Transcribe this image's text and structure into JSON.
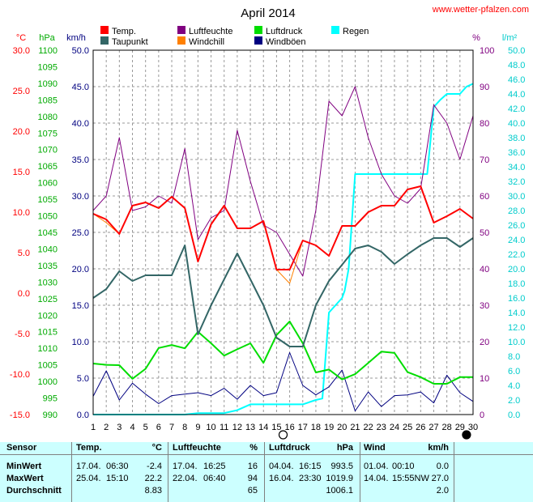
{
  "header": {
    "title": "April 2014",
    "source": "www.wetter-pfalzen.com"
  },
  "legend": [
    {
      "label": "Temp.",
      "color": "#ff0000"
    },
    {
      "label": "Luftfeuchte",
      "color": "#800080"
    },
    {
      "label": "Luftdruck",
      "color": "#00dd00"
    },
    {
      "label": "Regen",
      "color": "#00ffff"
    },
    {
      "label": "Taupunkt",
      "color": "#336666"
    },
    {
      "label": "Windchill",
      "color": "#ff8000"
    },
    {
      "label": "Windböen",
      "color": "#000080"
    }
  ],
  "axis_headers": {
    "temp": "°C",
    "pressure": "hPa",
    "wind": "km/h",
    "humidity": "%",
    "rain": "l/m²"
  },
  "colors": {
    "temp": "#ff0000",
    "dewpoint": "#336666",
    "humidity": "#800080",
    "windchill": "#ff8000",
    "pressure": "#00dd00",
    "rain": "#00ffff",
    "gusts": "#000080",
    "grid": "#999999",
    "table_bg": "#ccffff"
  },
  "moon_phases": [
    {
      "day": 15.5,
      "icon": "full-moon-icon"
    },
    {
      "day": 29.5,
      "icon": "new-moon-icon"
    }
  ],
  "chart_data": {
    "type": "line",
    "title": "April 2014",
    "x": [
      1,
      2,
      3,
      4,
      5,
      6,
      7,
      8,
      9,
      10,
      11,
      12,
      13,
      14,
      15,
      16,
      17,
      18,
      19,
      20,
      21,
      22,
      23,
      24,
      25,
      26,
      27,
      28,
      29,
      30
    ],
    "xlim": [
      1,
      30
    ],
    "axes": {
      "wind": {
        "unit": "km/h",
        "range": [
          0,
          50
        ],
        "ticks": [
          "0.0",
          "5.0",
          "10.0",
          "15.0",
          "20.0",
          "25.0",
          "30.0",
          "35.0",
          "40.0",
          "45.0",
          "50.0"
        ]
      },
      "temp": {
        "unit": "°C",
        "range": [
          -15,
          30
        ],
        "ticks": [
          "-15.0",
          "-10.0",
          "-5.0",
          "0.0",
          "5.0",
          "10.0",
          "15.0",
          "20.0",
          "25.0",
          "30.0"
        ]
      },
      "pressure": {
        "unit": "hPa",
        "range": [
          990,
          1100
        ],
        "ticks": [
          "990",
          "995",
          "1000",
          "1005",
          "1010",
          "1015",
          "1020",
          "1025",
          "1030",
          "1035",
          "1040",
          "1045",
          "1050",
          "1055",
          "1060",
          "1065",
          "1070",
          "1075",
          "1080",
          "1085",
          "1090",
          "1095",
          "1100"
        ]
      },
      "humidity": {
        "unit": "%",
        "range": [
          0,
          100
        ],
        "ticks": [
          "0",
          "10",
          "20",
          "30",
          "40",
          "50",
          "60",
          "70",
          "80",
          "90",
          "100"
        ]
      },
      "rain": {
        "unit": "l/m²",
        "range": [
          0,
          50
        ],
        "ticks": [
          "0.0",
          "2.0",
          "4.0",
          "6.0",
          "8.0",
          "10.0",
          "12.0",
          "14.0",
          "16.0",
          "18.0",
          "20.0",
          "22.0",
          "24.0",
          "26.0",
          "28.0",
          "30.0",
          "32.0",
          "34.0",
          "36.0",
          "38.0",
          "40.0",
          "42.0",
          "44.0",
          "46.0",
          "48.0",
          "50.0"
        ]
      }
    },
    "series": [
      {
        "name": "Temp.",
        "axis": "temp",
        "x": [
          1,
          2,
          3,
          4,
          5,
          6,
          7,
          8,
          9,
          10,
          11,
          12,
          13,
          14,
          15,
          16,
          17,
          18,
          19,
          20,
          21,
          22,
          23,
          24,
          25,
          26,
          27,
          28,
          29,
          30
        ],
        "values": [
          9.8,
          9.1,
          7.3,
          10.8,
          11.2,
          10.5,
          11.9,
          10.5,
          3.9,
          8.5,
          10.8,
          8.0,
          8.0,
          8.9,
          2.9,
          2.9,
          6.5,
          5.9,
          4.6,
          8.3,
          8.3,
          10.0,
          10.8,
          10.8,
          12.8,
          13.2,
          8.7,
          9.5,
          10.4,
          9.2
        ]
      },
      {
        "name": "Windchill",
        "axis": "temp",
        "x": [
          1,
          2,
          3,
          4,
          5,
          6,
          7,
          8,
          9,
          10,
          11,
          12,
          13,
          14,
          15,
          16,
          17,
          18,
          19,
          20,
          21,
          22,
          23,
          24,
          25,
          26,
          27,
          28,
          29,
          30
        ],
        "values": [
          9.8,
          8.7,
          7.3,
          10.8,
          11.2,
          10.5,
          11.9,
          10.5,
          3.9,
          8.5,
          10.8,
          8.0,
          8.0,
          8.9,
          2.9,
          1.2,
          6.5,
          5.9,
          4.6,
          8.3,
          8.3,
          10.0,
          10.8,
          10.8,
          12.8,
          13.2,
          8.7,
          9.5,
          10.4,
          9.2
        ]
      },
      {
        "name": "Taupunkt",
        "axis": "temp",
        "x": [
          1,
          2,
          3,
          4,
          5,
          6,
          7,
          8,
          9,
          10,
          11,
          12,
          13,
          14,
          15,
          16,
          17,
          18,
          19,
          20,
          21,
          22,
          23,
          24,
          25,
          26,
          27,
          28,
          29,
          30
        ],
        "values": [
          -0.6,
          0.5,
          2.7,
          1.5,
          2.2,
          2.2,
          2.2,
          5.9,
          -5.1,
          -1.5,
          1.7,
          4.9,
          1.7,
          -1.5,
          -5.5,
          -6.6,
          -6.6,
          -1.5,
          1.5,
          3.5,
          5.5,
          5.9,
          5.1,
          3.6,
          4.8,
          5.9,
          6.8,
          6.8,
          5.7,
          6.8
        ]
      },
      {
        "name": "Luftfeuchte",
        "axis": "humidity",
        "x": [
          1,
          2,
          3,
          4,
          5,
          6,
          7,
          8,
          9,
          10,
          11,
          12,
          13,
          14,
          15,
          16,
          17,
          18,
          19,
          20,
          21,
          22,
          23,
          24,
          25,
          26,
          27,
          28,
          29,
          30
        ],
        "values": [
          56,
          60,
          76,
          56,
          57,
          60,
          58,
          73,
          48,
          54,
          56,
          78,
          64,
          52,
          50,
          44,
          38,
          56,
          86,
          82,
          90,
          76,
          66,
          60,
          58,
          62,
          85,
          80,
          70,
          82
        ]
      },
      {
        "name": "Luftdruck",
        "axis": "pressure",
        "x": [
          1,
          2,
          3,
          4,
          5,
          6,
          7,
          8,
          9,
          10,
          11,
          12,
          13,
          14,
          15,
          16,
          17,
          18,
          19,
          20,
          21,
          22,
          23,
          24,
          25,
          26,
          27,
          28,
          29,
          30
        ],
        "values": [
          1005.4,
          1005.0,
          1004.9,
          1000.8,
          1003.8,
          1010.1,
          1011.0,
          1010.0,
          1015.0,
          1011.5,
          1007.8,
          1009.7,
          1011.5,
          1005.6,
          1014.0,
          1018.1,
          1011.5,
          1002.7,
          1003.6,
          1000.6,
          1002.2,
          1005.6,
          1009.0,
          1008.6,
          1002.8,
          1001.3,
          999.3,
          999.3,
          1001.3,
          1001.3
        ]
      },
      {
        "name": "Regen",
        "axis": "rain",
        "x": [
          1,
          2,
          3,
          4,
          5,
          6,
          7,
          8,
          9,
          10,
          11,
          12,
          13,
          14,
          15,
          16,
          17,
          18,
          18.5,
          19,
          19.5,
          20,
          20.2,
          20.5,
          21,
          22,
          23,
          24,
          25,
          26,
          26.5,
          27,
          27.5,
          28,
          29,
          29.5,
          30
        ],
        "values": [
          0,
          0,
          0,
          0,
          0,
          0,
          0,
          0,
          0.2,
          0.2,
          0.2,
          0.6,
          1.4,
          1.4,
          1.4,
          1.4,
          1.4,
          2.0,
          2.2,
          14.0,
          15.0,
          16.0,
          17.0,
          20.0,
          33.0,
          33.0,
          33.0,
          33.0,
          33.0,
          33.0,
          33.0,
          42.2,
          43.2,
          44.0,
          44.0,
          45.0,
          45.4
        ]
      },
      {
        "name": "Windböen",
        "axis": "wind",
        "x": [
          1,
          2,
          3,
          4,
          5,
          6,
          7,
          8,
          9,
          10,
          11,
          12,
          13,
          14,
          15,
          16,
          17,
          18,
          19,
          20,
          21,
          22,
          23,
          24,
          25,
          26,
          27,
          28,
          29,
          30
        ],
        "values": [
          2.5,
          6.0,
          2.0,
          4.3,
          2.8,
          1.5,
          2.6,
          2.8,
          3.0,
          2.6,
          3.6,
          2.1,
          4.0,
          2.6,
          3.0,
          8.5,
          4.0,
          2.7,
          3.8,
          6.1,
          0.5,
          3.1,
          1.1,
          2.6,
          2.7,
          3.1,
          1.6,
          5.4,
          3.0,
          1.8
        ]
      }
    ]
  },
  "table": {
    "headers": {
      "sensor": "Sensor",
      "temp": "Temp.",
      "temp_unit": "°C",
      "hum": "Luftfeuchte",
      "hum_unit": "%",
      "press": "Luftdruck",
      "press_unit": "hPa",
      "wind": "Wind",
      "wind_unit": "km/h"
    },
    "rows": [
      {
        "label": "MinWert",
        "t_date": "17.04.",
        "t_time": "06:30",
        "t_val": "-2.4",
        "h_date": "17.04.",
        "h_time": "16:25",
        "h_val": "16",
        "p_date": "04.04.",
        "p_time": "16:15",
        "p_val": "993.5",
        "w_date": "01.04.",
        "w_time": "00:10",
        "w_val": "0.0"
      },
      {
        "label": "MaxWert",
        "t_date": "25.04.",
        "t_time": "15:10",
        "t_val": "22.2",
        "h_date": "22.04.",
        "h_time": "06:40",
        "h_val": "94",
        "p_date": "16.04.",
        "p_time": "23:30",
        "p_val": "1019.9",
        "w_date": "14.04.",
        "w_time": "15:55NW",
        "w_val": "27.0"
      },
      {
        "label": "Durchschnitt",
        "t_date": "",
        "t_time": "",
        "t_val": "8.83",
        "h_date": "",
        "h_time": "",
        "h_val": "65",
        "p_date": "",
        "p_time": "",
        "p_val": "1006.1",
        "w_date": "",
        "w_time": "",
        "w_val": "2.0"
      }
    ]
  }
}
